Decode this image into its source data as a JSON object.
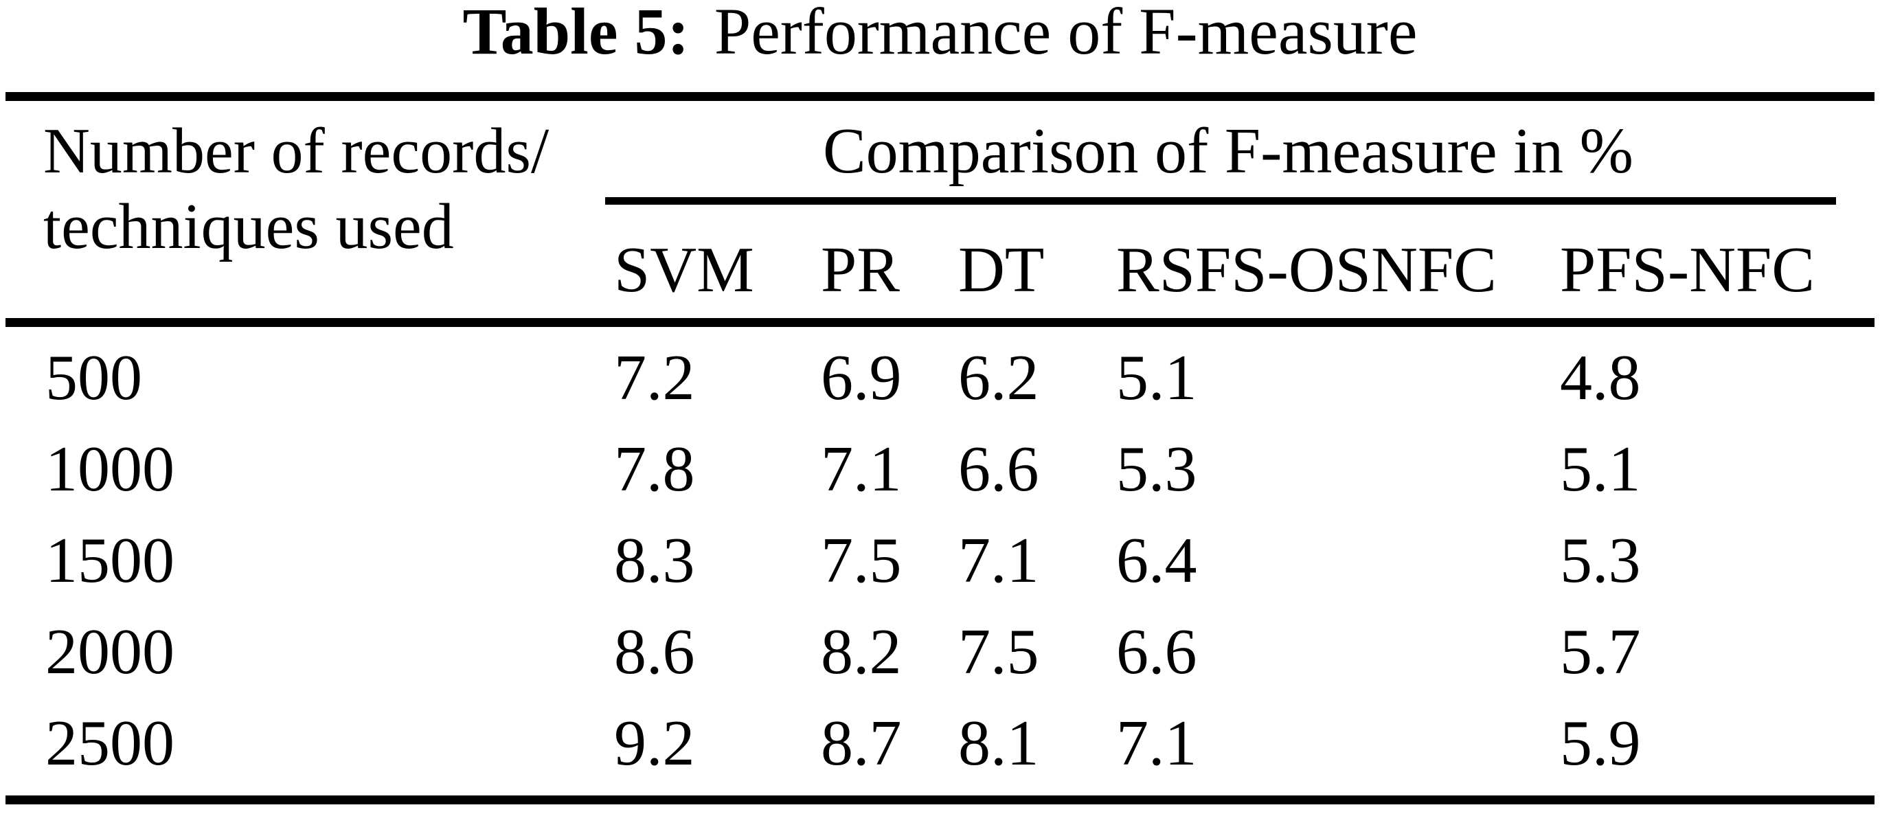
{
  "caption": {
    "label": "Table 5:",
    "text": "Performance of F-measure"
  },
  "table": {
    "corner_header": {
      "line1": "Number of records/",
      "line2": "techniques used"
    },
    "group_header": "Comparison of F-measure in %",
    "columns": [
      "SVM",
      "PR",
      "DT",
      "RSFS-OSNFC",
      "PFS-NFC"
    ],
    "rows": [
      {
        "label": "500",
        "values": [
          "7.2",
          "6.9",
          "6.2",
          "5.1",
          "4.8"
        ]
      },
      {
        "label": "1000",
        "values": [
          "7.8",
          "7.1",
          "6.6",
          "5.3",
          "5.1"
        ]
      },
      {
        "label": "1500",
        "values": [
          "8.3",
          "7.5",
          "7.1",
          "6.4",
          "5.3"
        ]
      },
      {
        "label": "2000",
        "values": [
          "8.6",
          "8.2",
          "7.5",
          "6.6",
          "5.7"
        ]
      },
      {
        "label": "2500",
        "values": [
          "9.2",
          "8.7",
          "8.1",
          "7.1",
          "5.9"
        ]
      }
    ]
  },
  "colors": {
    "text": "#000000",
    "background": "#ffffff",
    "rule": "#000000"
  },
  "chart_data": {
    "type": "table",
    "title": "Table 5: Performance of F-measure",
    "row_header": "Number of records/ techniques used",
    "group_header": "Comparison of F-measure in %",
    "columns": [
      "SVM",
      "PR",
      "DT",
      "RSFS-OSNFC",
      "PFS-NFC"
    ],
    "rows": [
      {
        "records": 500,
        "SVM": 7.2,
        "PR": 6.9,
        "DT": 6.2,
        "RSFS-OSNFC": 5.1,
        "PFS-NFC": 4.8
      },
      {
        "records": 1000,
        "SVM": 7.8,
        "PR": 7.1,
        "DT": 6.6,
        "RSFS-OSNFC": 5.3,
        "PFS-NFC": 5.1
      },
      {
        "records": 1500,
        "SVM": 8.3,
        "PR": 7.5,
        "DT": 7.1,
        "RSFS-OSNFC": 6.4,
        "PFS-NFC": 5.3
      },
      {
        "records": 2000,
        "SVM": 8.6,
        "PR": 8.2,
        "DT": 7.5,
        "RSFS-OSNFC": 6.6,
        "PFS-NFC": 5.7
      },
      {
        "records": 2500,
        "SVM": 9.2,
        "PR": 8.7,
        "DT": 8.1,
        "RSFS-OSNFC": 7.1,
        "PFS-NFC": 5.9
      }
    ]
  }
}
